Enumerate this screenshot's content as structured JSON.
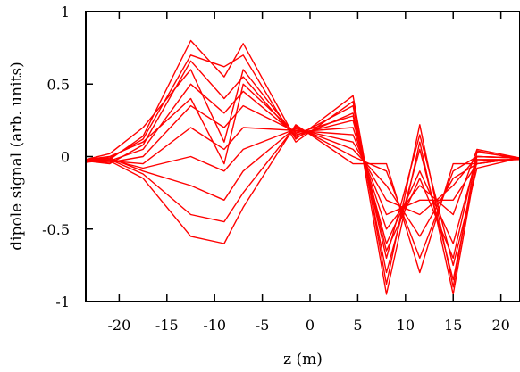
{
  "chart_data": {
    "type": "line",
    "title": "",
    "xlabel": "z (m)",
    "ylabel": "dipole signal (arb. units)",
    "xlim": [
      -23.5,
      22
    ],
    "ylim": [
      -1,
      1
    ],
    "x_ticks": [
      -20,
      -15,
      -10,
      -5,
      0,
      5,
      10,
      15,
      20
    ],
    "x_tick_labels": [
      "-20",
      "-15",
      "-10",
      "-5",
      "0",
      "5",
      "10",
      "15",
      "20"
    ],
    "y_ticks": [
      -1,
      -0.5,
      0,
      0.5,
      1
    ],
    "y_tick_labels": [
      "-1",
      "-0.5",
      "0",
      "0.5",
      "1"
    ],
    "grid": false,
    "legend": "none",
    "colors": {
      "series": "#ff0000",
      "axis": "#000000"
    },
    "x": [
      -23.5,
      -21,
      -17.5,
      -12.5,
      -9,
      -7,
      -1.5,
      4.5,
      8,
      11.5,
      15,
      17.5,
      22
    ],
    "series": [
      {
        "values": [
          -0.04,
          -0.02,
          0.14,
          0.8,
          0.55,
          0.78,
          0.12,
          0.42,
          -0.88,
          0.22,
          -0.9,
          0.04,
          -0.02
        ]
      },
      {
        "values": [
          -0.03,
          -0.01,
          0.12,
          0.7,
          0.62,
          0.7,
          0.1,
          0.38,
          -0.95,
          0.1,
          -0.95,
          -0.02,
          -0.02
        ]
      },
      {
        "values": [
          -0.03,
          -0.05,
          0.08,
          0.66,
          0.4,
          0.55,
          0.13,
          0.3,
          -0.7,
          0.15,
          -0.75,
          -0.08,
          -0.01
        ]
      },
      {
        "values": [
          -0.03,
          -0.03,
          0.05,
          0.5,
          0.3,
          0.45,
          0.15,
          0.25,
          -0.6,
          -0.1,
          -0.6,
          0.0,
          -0.01
        ]
      },
      {
        "values": [
          -0.03,
          -0.04,
          0.0,
          0.35,
          0.2,
          0.35,
          0.17,
          0.2,
          -0.5,
          -0.2,
          -0.4,
          0.05,
          -0.01
        ]
      },
      {
        "values": [
          -0.02,
          -0.03,
          -0.05,
          0.2,
          0.05,
          0.2,
          0.18,
          0.15,
          -0.4,
          -0.3,
          -0.3,
          -0.05,
          -0.01
        ]
      },
      {
        "values": [
          -0.02,
          -0.02,
          -0.08,
          0.0,
          -0.1,
          0.05,
          0.19,
          0.1,
          -0.3,
          -0.4,
          -0.2,
          0.0,
          -0.01
        ]
      },
      {
        "values": [
          -0.02,
          -0.01,
          -0.1,
          -0.2,
          -0.3,
          -0.1,
          0.2,
          0.05,
          -0.2,
          -0.55,
          -0.15,
          -0.05,
          -0.01
        ]
      },
      {
        "values": [
          -0.02,
          -0.02,
          -0.12,
          -0.4,
          -0.45,
          -0.25,
          0.21,
          0.0,
          -0.1,
          -0.7,
          -0.1,
          0.0,
          -0.01
        ]
      },
      {
        "values": [
          -0.02,
          -0.03,
          -0.15,
          -0.55,
          -0.6,
          -0.35,
          0.22,
          -0.05,
          -0.05,
          -0.8,
          -0.05,
          -0.05,
          -0.01
        ]
      },
      {
        "values": [
          -0.02,
          0.02,
          0.2,
          0.6,
          0.1,
          0.6,
          0.14,
          0.35,
          -0.8,
          0.05,
          -0.85,
          -0.03,
          -0.02
        ]
      },
      {
        "values": [
          -0.02,
          0.0,
          0.1,
          0.4,
          -0.05,
          0.5,
          0.16,
          0.28,
          -0.65,
          -0.15,
          -0.7,
          0.03,
          -0.01
        ]
      }
    ]
  }
}
